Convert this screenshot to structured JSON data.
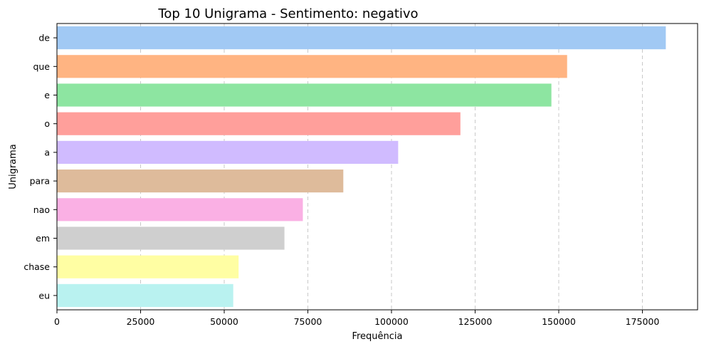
{
  "chart_data": {
    "type": "bar",
    "orientation": "horizontal",
    "title": "Top 10 Unigrama - Sentimento: negativo",
    "xlabel": "Frequência",
    "ylabel": "Unigrama",
    "categories": [
      "de",
      "que",
      "e",
      "o",
      "a",
      "para",
      "nao",
      "em",
      "chase",
      "eu"
    ],
    "values": [
      182000,
      152500,
      147800,
      120600,
      102000,
      85600,
      73500,
      68000,
      54300,
      52700
    ],
    "colors": [
      "#a1c9f4",
      "#ffb482",
      "#8de5a1",
      "#ff9f9b",
      "#d0bbff",
      "#debb9b",
      "#fab0e4",
      "#cfcfcf",
      "#fffea3",
      "#b9f2f0"
    ],
    "xlim": [
      0,
      191500
    ],
    "xticks": [
      0,
      25000,
      50000,
      75000,
      100000,
      125000,
      150000,
      175000
    ],
    "grid": "x-dashed",
    "legend": "none"
  }
}
